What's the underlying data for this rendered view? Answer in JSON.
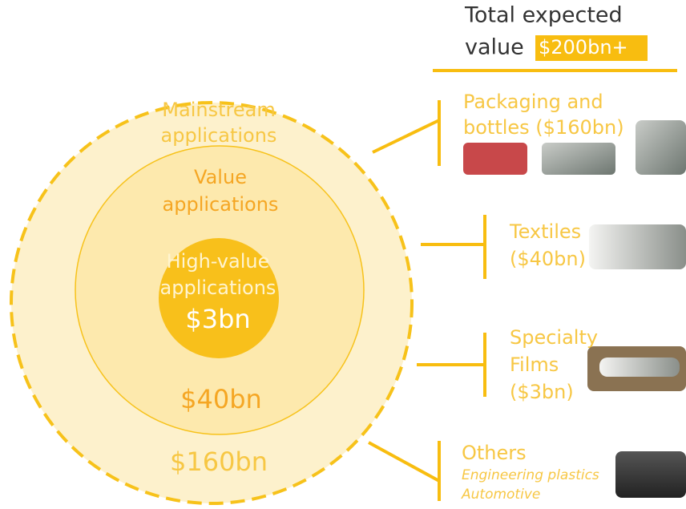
{
  "header": {
    "title_line1": "Total expected",
    "title_line2": "value",
    "total": "$200bn+"
  },
  "rings": [
    {
      "label_lines": [
        "Mainstream",
        "applications"
      ],
      "value": "$160bn"
    },
    {
      "label_lines": [
        "Value",
        "applications"
      ],
      "value": "$40bn"
    },
    {
      "label_lines": [
        "High-value",
        "applications"
      ],
      "value": "$3bn"
    }
  ],
  "segments": [
    {
      "lines": [
        "Packaging and",
        "bottles ($160bn)"
      ]
    },
    {
      "lines": [
        "Textiles",
        "($40bn)"
      ]
    },
    {
      "lines": [
        "Specialty",
        "Films",
        "($3bn)"
      ]
    },
    {
      "lines": [
        "Others"
      ],
      "examples": [
        "Engineering plastics",
        "Automotive"
      ]
    }
  ]
}
